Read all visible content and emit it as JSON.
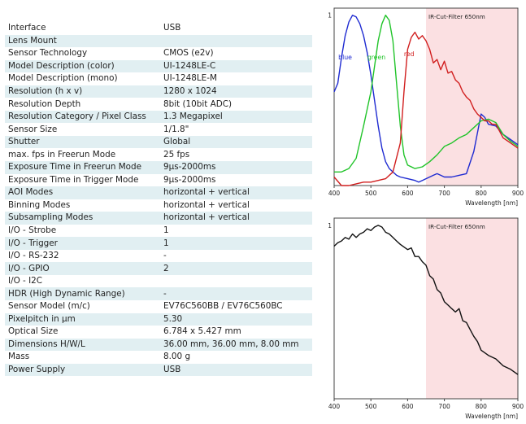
{
  "specs": [
    {
      "label": "Interface",
      "value": "USB"
    },
    {
      "label": "Lens Mount",
      "value": ""
    },
    {
      "label": "Sensor Technology",
      "value": "CMOS (e2v)"
    },
    {
      "label": "Model Description (color)",
      "value": "UI-1248LE-C"
    },
    {
      "label": "Model Description (mono)",
      "value": "UI-1248LE-M"
    },
    {
      "label": "Resolution (h x v)",
      "value": "1280 x 1024"
    },
    {
      "label": "Resolution Depth",
      "value": "8bit (10bit ADC)"
    },
    {
      "label": "Resolution Category / Pixel Class",
      "value": "1.3 Megapixel"
    },
    {
      "label": "Sensor Size",
      "value": "1/1.8\""
    },
    {
      "label": "Shutter",
      "value": "Global"
    },
    {
      "label": "max. fps in Freerun Mode",
      "value": "25 fps"
    },
    {
      "label": "Exposure Time in Freerun Mode",
      "value": "9µs-2000ms"
    },
    {
      "label": "Exposure Time in Trigger Mode",
      "value": "9µs-2000ms"
    },
    {
      "label": "AOI Modes",
      "value": "horizontal + vertical"
    },
    {
      "label": "Binning Modes",
      "value": "horizontal + vertical"
    },
    {
      "label": "Subsampling Modes",
      "value": "horizontal + vertical"
    },
    {
      "label": "I/O - Strobe",
      "value": "1"
    },
    {
      "label": "I/O - Trigger",
      "value": "1"
    },
    {
      "label": "I/O - RS-232",
      "value": "-"
    },
    {
      "label": "I/O - GPIO",
      "value": "2"
    },
    {
      "label": "I/O - I2C",
      "value": ""
    },
    {
      "label": "HDR (High Dynamic Range)",
      "value": "-"
    },
    {
      "label": "Sensor Model (m/c)",
      "value": "EV76C560BB / EV76C560BC"
    },
    {
      "label": "Pixelpitch in µm",
      "value": "5.30"
    },
    {
      "label": "Optical Size",
      "value": "6.784 x 5.427 mm"
    },
    {
      "label": "Dimensions H/W/L",
      "value": "36.00 mm, 36.00 mm, 8.00 mm"
    },
    {
      "label": "Mass",
      "value": "8.00 g"
    },
    {
      "label": "Power Supply",
      "value": "USB"
    }
  ],
  "chart_data": [
    {
      "type": "line",
      "xlabel": "Wavelength [nm]",
      "xlim": [
        400,
        900
      ],
      "ylim": [
        0,
        1
      ],
      "x_ticks": [
        "400",
        "500",
        "600",
        "700",
        "800",
        "900"
      ],
      "y_tick": "1",
      "shaded_region": {
        "from": 650,
        "to": 900,
        "label": "IR-Cut-Filter 650nm",
        "color": "#fbe0e2"
      },
      "series": [
        {
          "name": "blue",
          "color": "#1f2bd1",
          "points": [
            [
              400,
              0.55
            ],
            [
              410,
              0.6
            ],
            [
              420,
              0.75
            ],
            [
              430,
              0.88
            ],
            [
              440,
              0.96
            ],
            [
              450,
              1.0
            ],
            [
              460,
              0.99
            ],
            [
              470,
              0.95
            ],
            [
              480,
              0.88
            ],
            [
              490,
              0.78
            ],
            [
              500,
              0.65
            ],
            [
              510,
              0.5
            ],
            [
              520,
              0.35
            ],
            [
              530,
              0.22
            ],
            [
              540,
              0.14
            ],
            [
              550,
              0.1
            ],
            [
              560,
              0.08
            ],
            [
              570,
              0.06
            ],
            [
              580,
              0.05
            ],
            [
              600,
              0.04
            ],
            [
              620,
              0.03
            ],
            [
              630,
              0.02
            ],
            [
              640,
              0.03
            ],
            [
              650,
              0.04
            ],
            [
              660,
              0.05
            ],
            [
              670,
              0.06
            ],
            [
              680,
              0.07
            ],
            [
              690,
              0.06
            ],
            [
              700,
              0.05
            ],
            [
              720,
              0.05
            ],
            [
              740,
              0.06
            ],
            [
              760,
              0.07
            ],
            [
              780,
              0.2
            ],
            [
              800,
              0.42
            ],
            [
              810,
              0.4
            ],
            [
              820,
              0.36
            ],
            [
              840,
              0.35
            ],
            [
              860,
              0.3
            ],
            [
              880,
              0.27
            ],
            [
              900,
              0.24
            ]
          ]
        },
        {
          "name": "green",
          "color": "#21c42a",
          "points": [
            [
              400,
              0.08
            ],
            [
              420,
              0.08
            ],
            [
              440,
              0.1
            ],
            [
              460,
              0.16
            ],
            [
              480,
              0.35
            ],
            [
              500,
              0.55
            ],
            [
              510,
              0.7
            ],
            [
              520,
              0.85
            ],
            [
              530,
              0.95
            ],
            [
              540,
              1.0
            ],
            [
              550,
              0.97
            ],
            [
              560,
              0.85
            ],
            [
              570,
              0.6
            ],
            [
              580,
              0.35
            ],
            [
              590,
              0.18
            ],
            [
              600,
              0.12
            ],
            [
              620,
              0.1
            ],
            [
              640,
              0.11
            ],
            [
              660,
              0.14
            ],
            [
              680,
              0.18
            ],
            [
              700,
              0.23
            ],
            [
              720,
              0.25
            ],
            [
              740,
              0.28
            ],
            [
              760,
              0.3
            ],
            [
              780,
              0.34
            ],
            [
              800,
              0.38
            ],
            [
              820,
              0.39
            ],
            [
              840,
              0.37
            ],
            [
              860,
              0.3
            ],
            [
              880,
              0.26
            ],
            [
              900,
              0.23
            ]
          ]
        },
        {
          "name": "red",
          "color": "#d11f1f",
          "points": [
            [
              400,
              0.05
            ],
            [
              420,
              0.0
            ],
            [
              440,
              0.0
            ],
            [
              460,
              0.01
            ],
            [
              480,
              0.02
            ],
            [
              500,
              0.02
            ],
            [
              520,
              0.03
            ],
            [
              540,
              0.04
            ],
            [
              560,
              0.08
            ],
            [
              580,
              0.25
            ],
            [
              590,
              0.55
            ],
            [
              600,
              0.8
            ],
            [
              610,
              0.87
            ],
            [
              620,
              0.9
            ],
            [
              630,
              0.86
            ],
            [
              640,
              0.88
            ],
            [
              650,
              0.85
            ],
            [
              660,
              0.8
            ],
            [
              670,
              0.72
            ],
            [
              680,
              0.74
            ],
            [
              690,
              0.68
            ],
            [
              700,
              0.73
            ],
            [
              710,
              0.66
            ],
            [
              720,
              0.67
            ],
            [
              730,
              0.62
            ],
            [
              740,
              0.6
            ],
            [
              750,
              0.55
            ],
            [
              760,
              0.52
            ],
            [
              770,
              0.5
            ],
            [
              780,
              0.45
            ],
            [
              790,
              0.42
            ],
            [
              800,
              0.4
            ],
            [
              810,
              0.38
            ],
            [
              820,
              0.38
            ],
            [
              830,
              0.36
            ],
            [
              840,
              0.36
            ],
            [
              860,
              0.28
            ],
            [
              880,
              0.25
            ],
            [
              900,
              0.22
            ]
          ]
        }
      ]
    },
    {
      "type": "line",
      "xlabel": "Wavelength [nm]",
      "xlim": [
        400,
        900
      ],
      "ylim": [
        0,
        1
      ],
      "x_ticks": [
        "400",
        "500",
        "600",
        "700",
        "800",
        "900"
      ],
      "y_tick": "1",
      "shaded_region": {
        "from": 650,
        "to": 900,
        "label": "IR-Cut-Filter 650nm",
        "color": "#fbe0e2"
      },
      "series": [
        {
          "name": "",
          "color": "#111111",
          "points": [
            [
              400,
              0.88
            ],
            [
              410,
              0.9
            ],
            [
              420,
              0.91
            ],
            [
              430,
              0.93
            ],
            [
              440,
              0.92
            ],
            [
              450,
              0.95
            ],
            [
              460,
              0.93
            ],
            [
              470,
              0.95
            ],
            [
              480,
              0.96
            ],
            [
              490,
              0.98
            ],
            [
              500,
              0.97
            ],
            [
              510,
              0.99
            ],
            [
              520,
              1.0
            ],
            [
              530,
              0.99
            ],
            [
              540,
              0.96
            ],
            [
              550,
              0.95
            ],
            [
              560,
              0.93
            ],
            [
              570,
              0.91
            ],
            [
              580,
              0.89
            ],
            [
              600,
              0.86
            ],
            [
              610,
              0.87
            ],
            [
              620,
              0.82
            ],
            [
              630,
              0.82
            ],
            [
              640,
              0.79
            ],
            [
              650,
              0.77
            ],
            [
              660,
              0.71
            ],
            [
              670,
              0.69
            ],
            [
              680,
              0.63
            ],
            [
              690,
              0.61
            ],
            [
              700,
              0.56
            ],
            [
              710,
              0.54
            ],
            [
              720,
              0.52
            ],
            [
              730,
              0.5
            ],
            [
              740,
              0.52
            ],
            [
              750,
              0.45
            ],
            [
              760,
              0.44
            ],
            [
              770,
              0.4
            ],
            [
              780,
              0.36
            ],
            [
              790,
              0.33
            ],
            [
              800,
              0.28
            ],
            [
              820,
              0.25
            ],
            [
              840,
              0.23
            ],
            [
              860,
              0.19
            ],
            [
              880,
              0.17
            ],
            [
              900,
              0.14
            ]
          ]
        }
      ]
    }
  ]
}
